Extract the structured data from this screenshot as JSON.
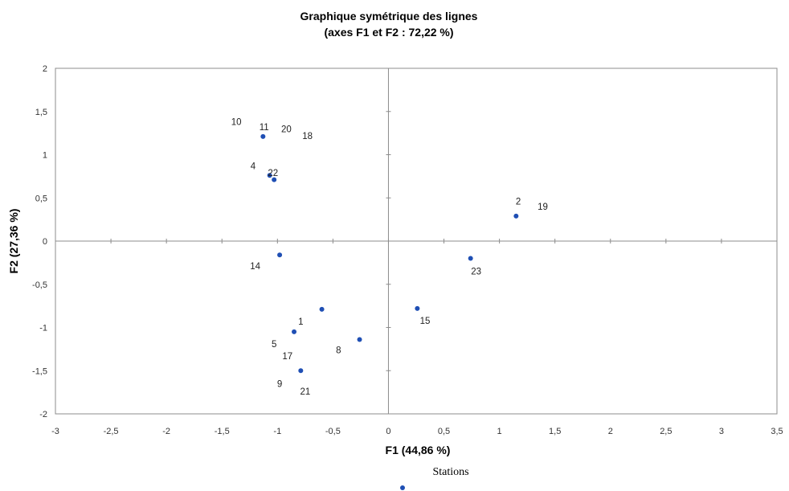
{
  "chart_data": {
    "type": "scatter",
    "title": [
      "Graphique symétrique des lignes",
      "(axes F1 et F2 : 72,22 %)"
    ],
    "xlabel": "F1 (44,86 %)",
    "ylabel": "F2 (27,36 %)",
    "xlim": [
      -3,
      3.5
    ],
    "ylim": [
      -2,
      2
    ],
    "xticks": [
      "-3",
      "-2,5",
      "-2",
      "-1,5",
      "-1",
      "-0,5",
      "0",
      "0,5",
      "1",
      "1,5",
      "2",
      "2,5",
      "3",
      "3,5"
    ],
    "yticks": [
      "-2",
      "-1,5",
      "-1",
      "-0,5",
      "0",
      "0,5",
      "1",
      "1,5",
      "2"
    ],
    "xtick_values": [
      -3,
      -2.5,
      -2,
      -1.5,
      -1,
      -0.5,
      0,
      0.5,
      1,
      1.5,
      2,
      2.5,
      3,
      3.5
    ],
    "ytick_values": [
      -2,
      -1.5,
      -1,
      -0.5,
      0,
      0.5,
      1,
      1.5,
      2
    ],
    "grid": false,
    "marker_color": "#1f4fb4",
    "series": [
      {
        "name": "Stations",
        "points": [
          {
            "x": -1.13,
            "y": 1.21
          },
          {
            "x": -1.07,
            "y": 0.76
          },
          {
            "x": -1.03,
            "y": 0.71
          },
          {
            "x": 1.15,
            "y": 0.29
          },
          {
            "x": -0.98,
            "y": -0.16
          },
          {
            "x": 0.74,
            "y": -0.2
          },
          {
            "x": -0.6,
            "y": -0.79
          },
          {
            "x": 0.26,
            "y": -0.78
          },
          {
            "x": -0.85,
            "y": -1.05
          },
          {
            "x": -0.26,
            "y": -1.14
          },
          {
            "x": -0.79,
            "y": -1.5
          }
        ]
      }
    ],
    "labels": [
      {
        "text": "10",
        "x": -1.37,
        "y": 1.38
      },
      {
        "text": "11",
        "x": -1.12,
        "y": 1.32
      },
      {
        "text": "20",
        "x": -0.92,
        "y": 1.3
      },
      {
        "text": "18",
        "x": -0.73,
        "y": 1.22
      },
      {
        "text": "4",
        "x": -1.22,
        "y": 0.87
      },
      {
        "text": "22",
        "x": -1.04,
        "y": 0.79
      },
      {
        "text": "2",
        "x": 1.17,
        "y": 0.46
      },
      {
        "text": "19",
        "x": 1.39,
        "y": 0.4
      },
      {
        "text": "14",
        "x": -1.2,
        "y": -0.29
      },
      {
        "text": "23",
        "x": 0.79,
        "y": -0.35
      },
      {
        "text": "1",
        "x": -0.79,
        "y": -0.93
      },
      {
        "text": "15",
        "x": 0.33,
        "y": -0.92
      },
      {
        "text": "5",
        "x": -1.03,
        "y": -1.19
      },
      {
        "text": "8",
        "x": -0.45,
        "y": -1.26
      },
      {
        "text": "17",
        "x": -0.91,
        "y": -1.33
      },
      {
        "text": "9",
        "x": -0.98,
        "y": -1.65
      },
      {
        "text": "21",
        "x": -0.75,
        "y": -1.74
      }
    ],
    "legend": {
      "label": "Stations",
      "position": "bottom-center"
    }
  }
}
